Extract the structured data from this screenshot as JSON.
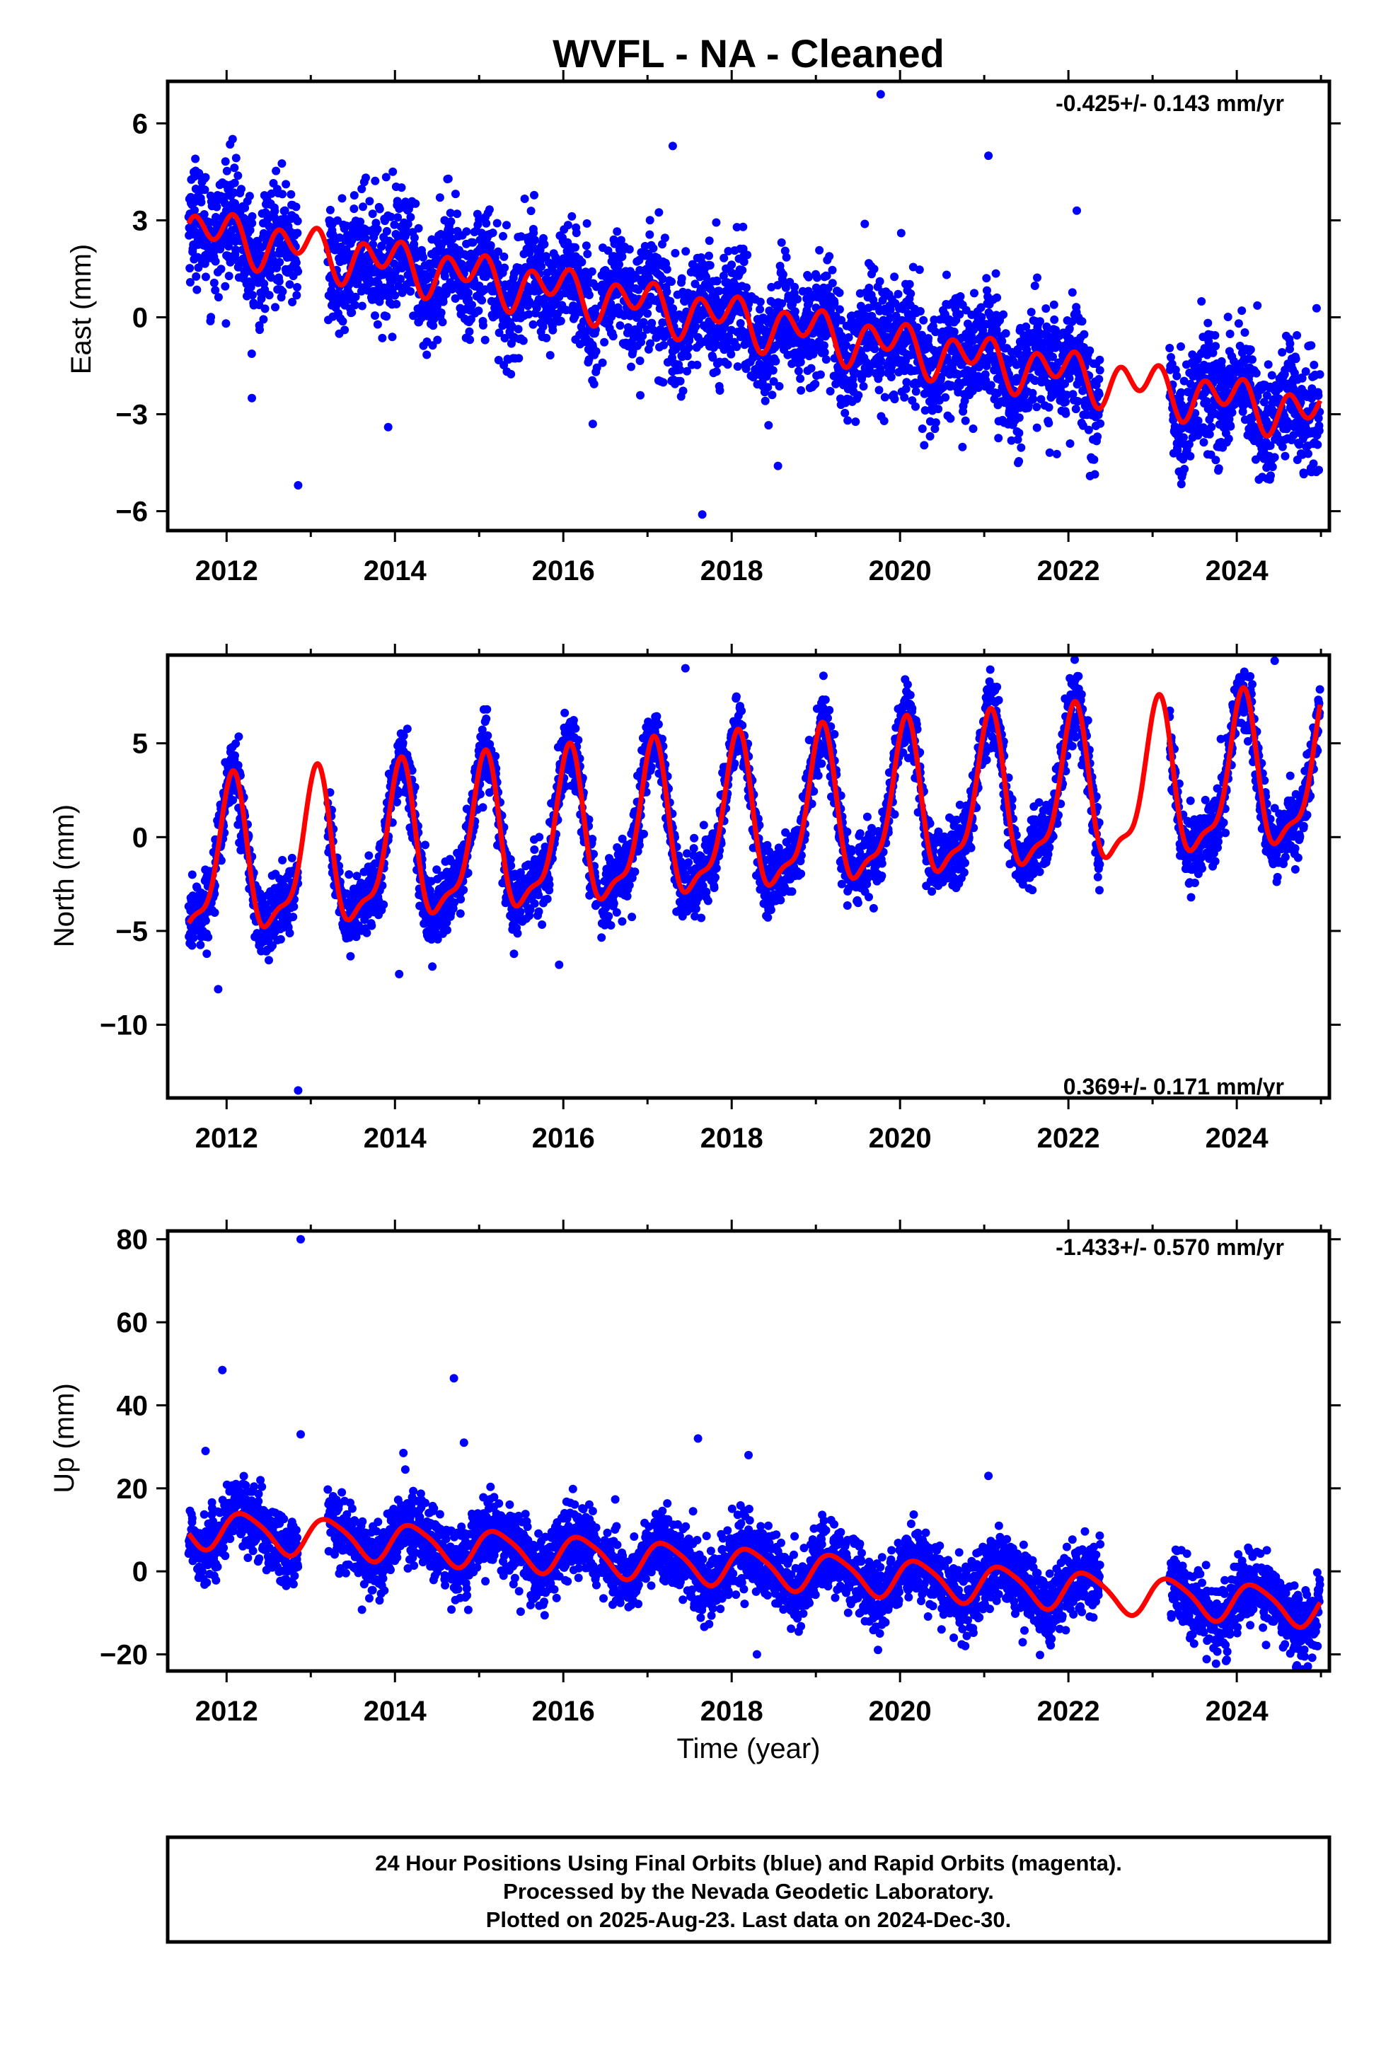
{
  "title": "WVFL  - NA - Cleaned",
  "colors": {
    "final_orbits": "#0000ff",
    "fit": "#ff0000",
    "frame": "#000000"
  },
  "chart_data": [
    {
      "type": "scatter",
      "component": "east",
      "ylabel": "East (mm)",
      "xlabel": "",
      "xlim": [
        2011.3,
        2025.1
      ],
      "ylim": [
        -6.6,
        7.3
      ],
      "x_ticks": [
        2012,
        2014,
        2016,
        2018,
        2020,
        2022,
        2024
      ],
      "y_ticks": [
        -6,
        -3,
        0,
        3,
        6
      ],
      "y_tick_labels": [
        "−6",
        "−3",
        "0",
        "3",
        "6"
      ],
      "rate_label": "-0.425+/- 0.143 mm/yr",
      "rate_position": "top-right",
      "data_start": 2011.55,
      "data_end": 2024.99,
      "data_gaps": [
        [
          2012.85,
          2013.2
        ],
        [
          2016.4,
          2016.45
        ],
        [
          2022.38,
          2023.2
        ]
      ],
      "series": [
        {
          "name": "Final Orbits",
          "color": "#0000ff",
          "points_per_year": 330,
          "scatter_sd": 0.9
        },
        {
          "name": "model fit",
          "color": "#ff0000",
          "model": {
            "t0": 2011.55,
            "intercept": 2.7,
            "rate": -0.425,
            "annual_amplitude": 0.4,
            "annual_phase": 2.2,
            "semiannual_amplitude": 0.55,
            "semiannual_phase": 0.3
          }
        }
      ],
      "outliers": [
        {
          "x": 2012.85,
          "y": -5.2
        },
        {
          "x": 2013.92,
          "y": -3.4
        },
        {
          "x": 2017.3,
          "y": 5.3
        },
        {
          "x": 2017.65,
          "y": -6.1
        },
        {
          "x": 2019.77,
          "y": 6.9
        },
        {
          "x": 2021.05,
          "y": 5.0
        },
        {
          "x": 2012.3,
          "y": -2.5
        },
        {
          "x": 2016.35,
          "y": -3.3
        },
        {
          "x": 2018.55,
          "y": -4.6
        },
        {
          "x": 2022.1,
          "y": 3.3
        }
      ]
    },
    {
      "type": "scatter",
      "component": "north",
      "ylabel": "North (mm)",
      "xlabel": "",
      "xlim": [
        2011.3,
        2025.1
      ],
      "ylim": [
        -13.9,
        9.7
      ],
      "x_ticks": [
        2012,
        2014,
        2016,
        2018,
        2020,
        2022,
        2024
      ],
      "y_ticks": [
        -10,
        -5,
        0,
        5
      ],
      "y_tick_labels": [
        "−10",
        "−5",
        "0",
        "5"
      ],
      "rate_label": "0.369+/- 0.171 mm/yr",
      "rate_position": "bottom-right",
      "data_start": 2011.55,
      "data_end": 2024.99,
      "data_gaps": [
        [
          2012.85,
          2013.2
        ],
        [
          2016.4,
          2016.45
        ],
        [
          2022.38,
          2023.2
        ]
      ],
      "series": [
        {
          "name": "Final Orbits",
          "color": "#0000ff",
          "points_per_year": 330,
          "scatter_sd": 0.9
        },
        {
          "name": "model fit",
          "color": "#ff0000",
          "model": {
            "t0": 2011.55,
            "intercept": -1.8,
            "rate": 0.369,
            "annual_amplitude": 3.9,
            "annual_phase": 1.2,
            "semiannual_amplitude": 1.3,
            "semiannual_phase": 0.4
          }
        }
      ],
      "outliers": [
        {
          "x": 2012.85,
          "y": -13.5
        },
        {
          "x": 2015.95,
          "y": -6.8
        },
        {
          "x": 2017.45,
          "y": 9.0
        },
        {
          "x": 2024.45,
          "y": 9.4
        },
        {
          "x": 2011.9,
          "y": -8.1
        },
        {
          "x": 2014.05,
          "y": -7.3
        }
      ]
    },
    {
      "type": "scatter",
      "component": "up",
      "ylabel": "Up (mm)",
      "xlabel": "Time (year)",
      "xlim": [
        2011.3,
        2025.1
      ],
      "ylim": [
        -24,
        82
      ],
      "x_ticks": [
        2012,
        2014,
        2016,
        2018,
        2020,
        2022,
        2024
      ],
      "y_ticks": [
        -20,
        0,
        20,
        40,
        60,
        80
      ],
      "y_tick_labels": [
        "−20",
        "0",
        "20",
        "40",
        "60",
        "80"
      ],
      "rate_label": "-1.433+/- 0.570 mm/yr",
      "rate_position": "top-right",
      "data_start": 2011.55,
      "data_end": 2024.99,
      "data_gaps": [
        [
          2012.85,
          2013.2
        ],
        [
          2016.4,
          2016.45
        ],
        [
          2022.38,
          2023.2
        ]
      ],
      "series": [
        {
          "name": "Final Orbits",
          "color": "#0000ff",
          "points_per_year": 330,
          "scatter_sd": 4.2
        },
        {
          "name": "model fit",
          "color": "#ff0000",
          "model": {
            "t0": 2011.55,
            "intercept": 10.5,
            "rate": -1.433,
            "annual_amplitude": 4.5,
            "annual_phase": 0.2,
            "semiannual_amplitude": 0.8,
            "semiannual_phase": 1.0
          }
        }
      ],
      "outliers": [
        {
          "x": 2012.88,
          "y": 80
        },
        {
          "x": 2011.95,
          "y": 48.5
        },
        {
          "x": 2014.7,
          "y": 46.5
        },
        {
          "x": 2012.88,
          "y": 33
        },
        {
          "x": 2014.82,
          "y": 31
        },
        {
          "x": 2017.6,
          "y": 32
        },
        {
          "x": 2018.2,
          "y": 28
        },
        {
          "x": 2014.1,
          "y": 28.5
        },
        {
          "x": 2021.05,
          "y": 23
        },
        {
          "x": 2011.75,
          "y": 29
        },
        {
          "x": 2018.3,
          "y": -20
        }
      ]
    }
  ],
  "footer": {
    "line1": "24 Hour Positions Using Final Orbits (blue) and Rapid Orbits (magenta).",
    "line2": "Processed by the Nevada Geodetic Laboratory.",
    "line3": "Plotted on 2025-Aug-23. Last data on 2024-Dec-30."
  }
}
